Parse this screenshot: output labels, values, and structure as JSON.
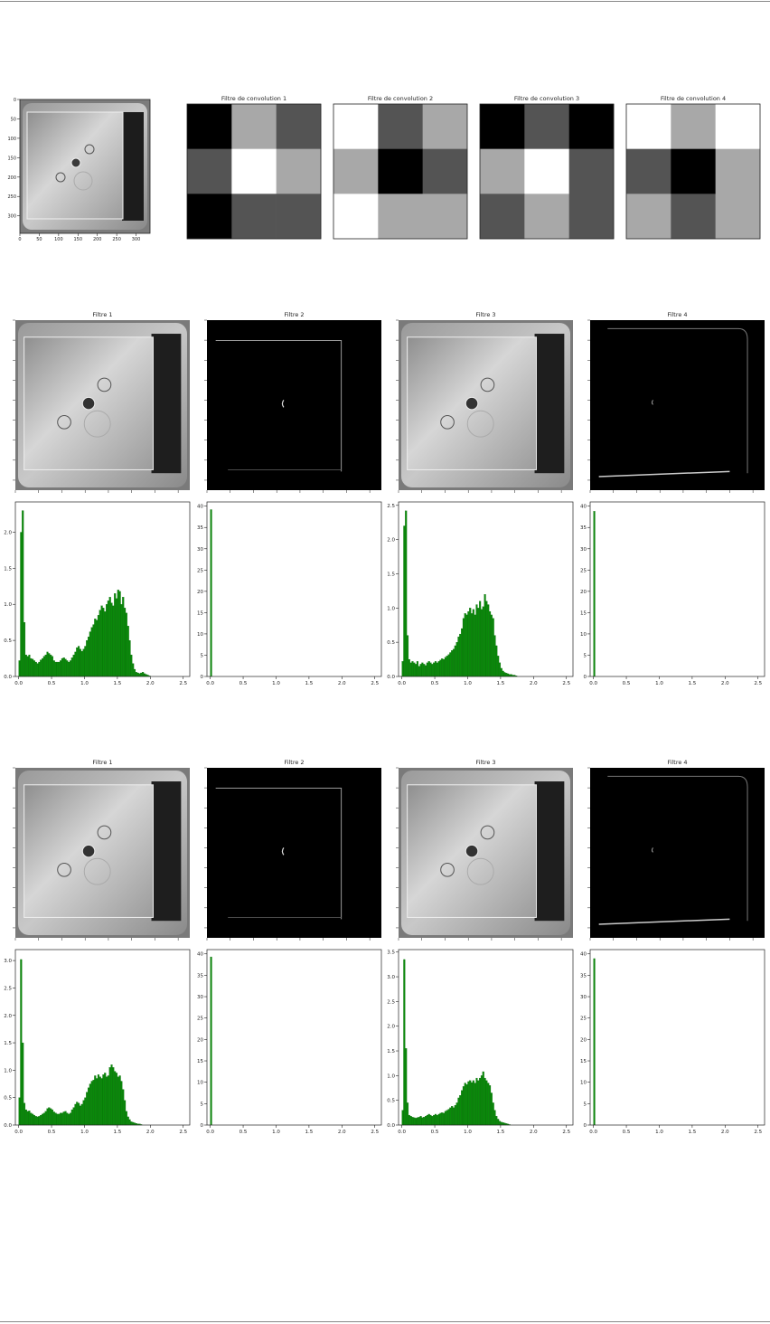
{
  "colors": {
    "bar": "#0a8a0a",
    "bar_edge": "#056005",
    "frame": "#222222",
    "tick_text": "#222222"
  },
  "kernels": {
    "titles": [
      "Filtre de convolution 1",
      "Filtre de convolution 2",
      "Filtre de convolution 3",
      "Filtre de convolution 4"
    ],
    "matrices": [
      [
        [
          0.0,
          0.66,
          0.33
        ],
        [
          0.33,
          1.0,
          0.66
        ],
        [
          0.0,
          0.33,
          0.33
        ]
      ],
      [
        [
          1.0,
          0.33,
          0.66
        ],
        [
          0.66,
          0.0,
          0.33
        ],
        [
          1.0,
          0.66,
          0.66
        ]
      ],
      [
        [
          0.0,
          0.33,
          0.0
        ],
        [
          0.66,
          1.0,
          0.33
        ],
        [
          0.33,
          0.66,
          0.33
        ]
      ],
      [
        [
          1.0,
          0.66,
          1.0
        ],
        [
          0.33,
          0.0,
          0.66
        ],
        [
          0.66,
          0.33,
          0.66
        ]
      ]
    ]
  },
  "source_image": {
    "x_ticks": [
      "0",
      "50",
      "100",
      "150",
      "200",
      "250",
      "300"
    ],
    "y_ticks": [
      "0",
      "50",
      "100",
      "150",
      "200",
      "250",
      "300"
    ]
  },
  "groups": [
    {
      "panel_titles": [
        "Filtre 1",
        "Filtre 2",
        "Filtre 3",
        "Filtre 4"
      ],
      "panel_images": [
        "gray-tray",
        "dark-edge",
        "gray-tray",
        "dark-bottom-edge"
      ]
    },
    {
      "panel_titles": [
        "Filtre 1",
        "Filtre 2",
        "Filtre 3",
        "Filtre 4"
      ],
      "panel_images": [
        "gray-tray",
        "dark-edge",
        "gray-tray",
        "dark-bottom-edge"
      ]
    }
  ],
  "chart_data": [
    {
      "type": "bar",
      "title": "Filtre 1",
      "x_ticks": [
        "0.0",
        "0.5",
        "1.0",
        "1.5",
        "2.0",
        "2.5"
      ],
      "y_ticks": [
        "0.0",
        "0.5",
        "1.0",
        "1.5",
        "2.0"
      ],
      "xlim": [
        -0.05,
        2.6
      ],
      "ylim": [
        0,
        2.42
      ],
      "bin_start": 0.0,
      "bin_width": 0.025,
      "values": [
        0.22,
        2.0,
        2.3,
        0.75,
        0.3,
        0.28,
        0.3,
        0.25,
        0.24,
        0.22,
        0.2,
        0.18,
        0.2,
        0.23,
        0.25,
        0.28,
        0.3,
        0.34,
        0.32,
        0.3,
        0.28,
        0.22,
        0.2,
        0.2,
        0.2,
        0.22,
        0.25,
        0.26,
        0.24,
        0.22,
        0.2,
        0.22,
        0.26,
        0.3,
        0.34,
        0.4,
        0.42,
        0.38,
        0.35,
        0.38,
        0.42,
        0.5,
        0.55,
        0.62,
        0.68,
        0.72,
        0.8,
        0.78,
        0.85,
        0.92,
        0.98,
        0.95,
        0.9,
        1.0,
        1.05,
        1.1,
        1.02,
        0.98,
        1.15,
        1.08,
        1.2,
        1.18,
        1.0,
        1.1,
        0.95,
        0.88,
        0.7,
        0.5,
        0.3,
        0.18,
        0.1,
        0.06,
        0.05,
        0.04,
        0.05,
        0.06,
        0.04,
        0.03,
        0.02,
        0.01
      ]
    },
    {
      "type": "bar",
      "title": "Filtre 2",
      "x_ticks": [
        "0.0",
        "0.5",
        "1.0",
        "1.5",
        "2.0",
        "2.5"
      ],
      "y_ticks": [
        "0",
        "5",
        "10",
        "15",
        "20",
        "25",
        "30",
        "35",
        "40"
      ],
      "xlim": [
        -0.05,
        2.6
      ],
      "ylim": [
        0,
        41
      ],
      "bin_start": 0.0,
      "bin_width": 0.025,
      "values": [
        39.2
      ]
    },
    {
      "type": "bar",
      "title": "Filtre 3",
      "x_ticks": [
        "0.0",
        "0.5",
        "1.0",
        "1.5",
        "2.0",
        "2.5"
      ],
      "y_ticks": [
        "0.0",
        "0.5",
        "1.0",
        "1.5",
        "2.0",
        "2.5"
      ],
      "xlim": [
        -0.05,
        2.6
      ],
      "ylim": [
        0,
        2.55
      ],
      "bin_start": 0.0,
      "bin_width": 0.025,
      "values": [
        0.22,
        2.2,
        2.42,
        0.6,
        0.25,
        0.2,
        0.22,
        0.2,
        0.18,
        0.22,
        0.15,
        0.18,
        0.2,
        0.18,
        0.16,
        0.2,
        0.22,
        0.2,
        0.18,
        0.2,
        0.22,
        0.2,
        0.22,
        0.24,
        0.26,
        0.25,
        0.28,
        0.3,
        0.32,
        0.35,
        0.38,
        0.4,
        0.45,
        0.5,
        0.58,
        0.62,
        0.7,
        0.85,
        0.92,
        0.9,
        0.95,
        1.0,
        0.92,
        0.98,
        0.9,
        1.05,
        1.0,
        1.1,
        0.98,
        1.02,
        1.2,
        1.1,
        1.05,
        0.95,
        0.9,
        0.85,
        0.6,
        0.45,
        0.3,
        0.2,
        0.12,
        0.08,
        0.06,
        0.05,
        0.04,
        0.03,
        0.03,
        0.02,
        0.02,
        0.01
      ]
    },
    {
      "type": "bar",
      "title": "Filtre 4",
      "x_ticks": [
        "0.0",
        "0.5",
        "1.0",
        "1.5",
        "2.0",
        "2.5"
      ],
      "y_ticks": [
        "0",
        "5",
        "10",
        "15",
        "20",
        "25",
        "30",
        "35",
        "40"
      ],
      "xlim": [
        -0.05,
        2.6
      ],
      "ylim": [
        0,
        41
      ],
      "bin_start": 0.0,
      "bin_width": 0.025,
      "values": [
        38.8
      ]
    },
    {
      "type": "bar",
      "title": "Filtre 1",
      "x_ticks": [
        "0.0",
        "0.5",
        "1.0",
        "1.5",
        "2.0",
        "2.5"
      ],
      "y_ticks": [
        "0.0",
        "0.5",
        "1.0",
        "1.5",
        "2.0",
        "2.5",
        "3.0"
      ],
      "xlim": [
        -0.05,
        2.6
      ],
      "ylim": [
        0,
        3.2
      ],
      "bin_start": 0.0,
      "bin_width": 0.025,
      "values": [
        0.5,
        3.02,
        1.5,
        0.4,
        0.28,
        0.25,
        0.26,
        0.22,
        0.2,
        0.18,
        0.16,
        0.15,
        0.16,
        0.18,
        0.2,
        0.22,
        0.25,
        0.3,
        0.32,
        0.3,
        0.28,
        0.24,
        0.22,
        0.2,
        0.2,
        0.22,
        0.22,
        0.24,
        0.25,
        0.22,
        0.2,
        0.22,
        0.28,
        0.32,
        0.38,
        0.42,
        0.4,
        0.35,
        0.38,
        0.45,
        0.5,
        0.6,
        0.68,
        0.75,
        0.8,
        0.82,
        0.9,
        0.85,
        0.92,
        0.88,
        0.85,
        0.92,
        0.95,
        0.88,
        0.9,
        1.05,
        1.1,
        1.05,
        0.98,
        0.95,
        0.88,
        0.9,
        0.8,
        0.65,
        0.45,
        0.25,
        0.15,
        0.1,
        0.06,
        0.05,
        0.04,
        0.03,
        0.02,
        0.02,
        0.01
      ]
    },
    {
      "type": "bar",
      "title": "Filtre 2",
      "x_ticks": [
        "0.0",
        "0.5",
        "1.0",
        "1.5",
        "2.0",
        "2.5"
      ],
      "y_ticks": [
        "0",
        "5",
        "10",
        "15",
        "20",
        "25",
        "30",
        "35",
        "40"
      ],
      "xlim": [
        -0.05,
        2.6
      ],
      "ylim": [
        0,
        41
      ],
      "bin_start": 0.0,
      "bin_width": 0.025,
      "values": [
        39.3
      ]
    },
    {
      "type": "bar",
      "title": "Filtre 3",
      "x_ticks": [
        "0.0",
        "0.5",
        "1.0",
        "1.5",
        "2.0",
        "2.5"
      ],
      "y_ticks": [
        "0.0",
        "0.5",
        "1.0",
        "1.5",
        "2.0",
        "2.5",
        "3.0",
        "3.5"
      ],
      "xlim": [
        -0.05,
        2.6
      ],
      "ylim": [
        0,
        3.55
      ],
      "bin_start": 0.0,
      "bin_width": 0.025,
      "values": [
        0.3,
        3.35,
        1.55,
        0.45,
        0.2,
        0.18,
        0.16,
        0.15,
        0.14,
        0.15,
        0.16,
        0.18,
        0.15,
        0.16,
        0.18,
        0.2,
        0.22,
        0.2,
        0.18,
        0.2,
        0.22,
        0.2,
        0.22,
        0.24,
        0.25,
        0.24,
        0.28,
        0.3,
        0.32,
        0.35,
        0.38,
        0.35,
        0.4,
        0.45,
        0.55,
        0.6,
        0.7,
        0.78,
        0.85,
        0.82,
        0.88,
        0.9,
        0.86,
        0.9,
        0.85,
        0.95,
        0.9,
        0.95,
        1.0,
        1.08,
        0.95,
        0.9,
        0.85,
        0.8,
        0.65,
        0.45,
        0.3,
        0.18,
        0.12,
        0.08,
        0.06,
        0.05,
        0.04,
        0.03,
        0.02,
        0.01
      ]
    },
    {
      "type": "bar",
      "title": "Filtre 4",
      "x_ticks": [
        "0.0",
        "0.5",
        "1.0",
        "1.5",
        "2.0",
        "2.5"
      ],
      "y_ticks": [
        "0",
        "5",
        "10",
        "15",
        "20",
        "25",
        "30",
        "35",
        "40"
      ],
      "xlim": [
        -0.05,
        2.6
      ],
      "ylim": [
        0,
        41
      ],
      "bin_start": 0.0,
      "bin_width": 0.025,
      "values": [
        38.9
      ]
    }
  ]
}
